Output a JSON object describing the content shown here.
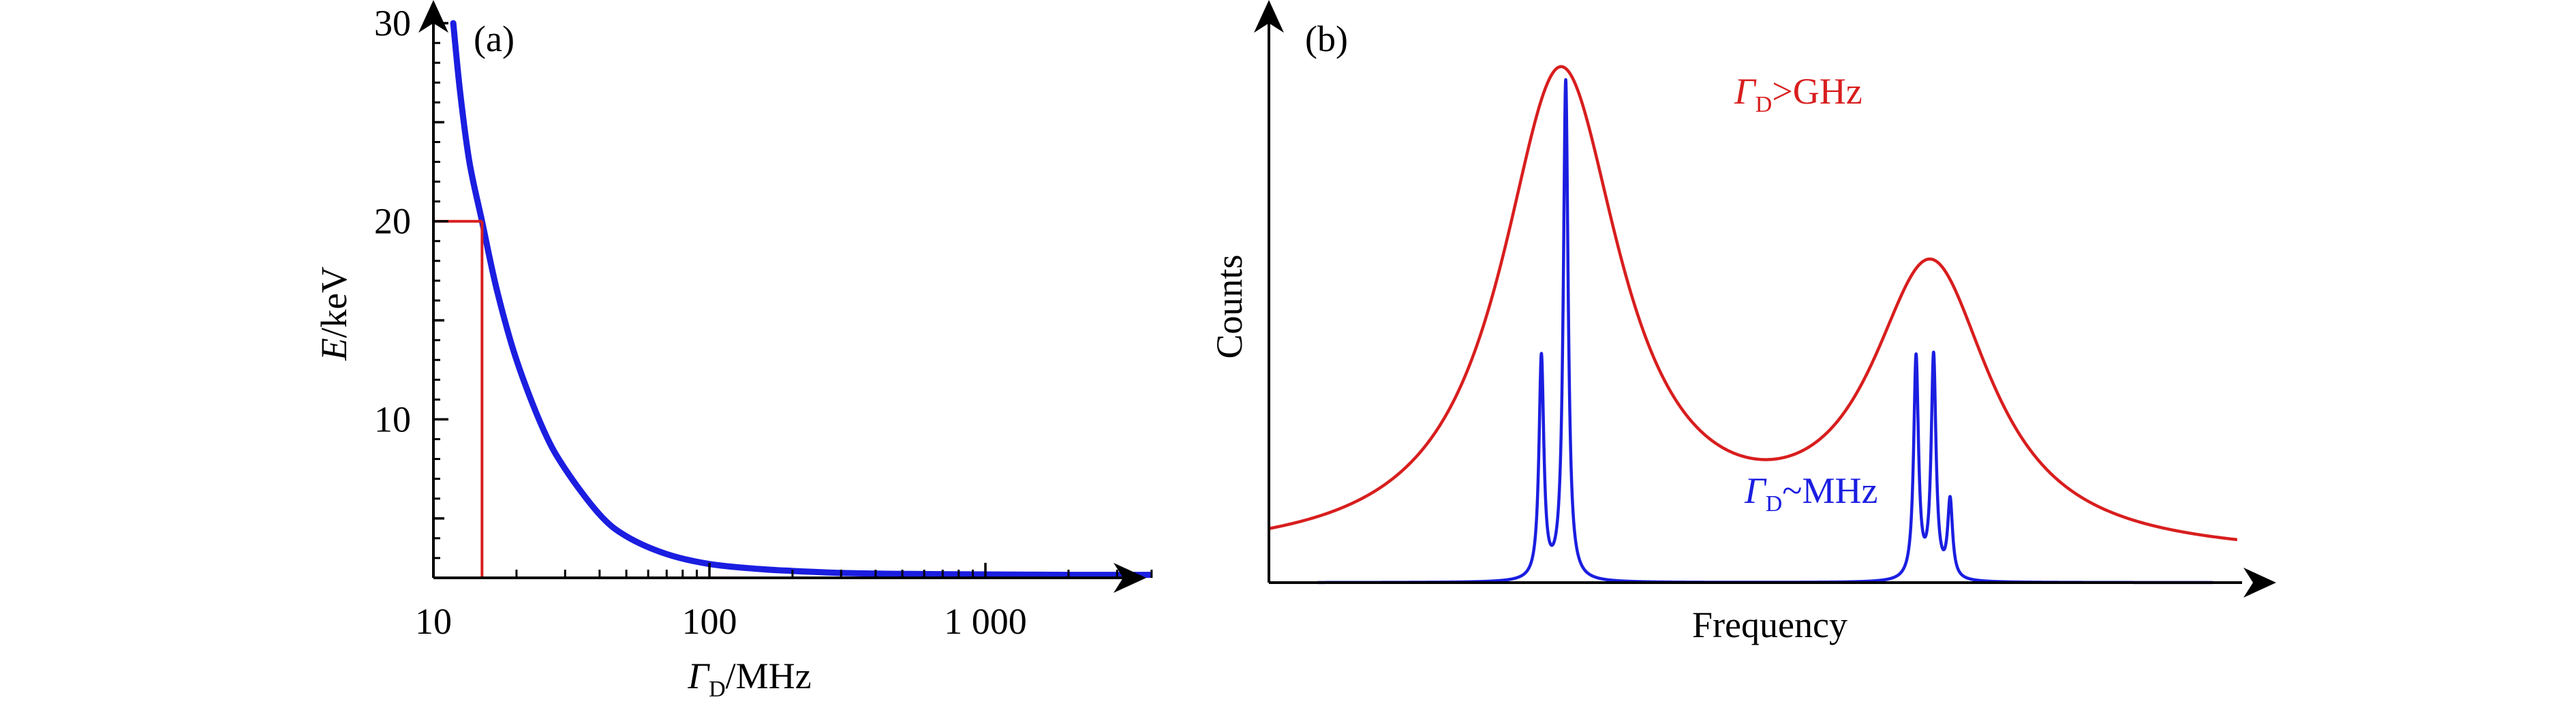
{
  "colors": {
    "axis": "#000000",
    "panel_a_curve": "#1b1ee0",
    "panel_a_marker": "#d81e1e",
    "panel_b_broad": "#d81e1e",
    "panel_b_narrow": "#1b1ee0"
  },
  "chart_data": [
    {
      "panel_label": "(a)",
      "type": "line",
      "xlabel": {
        "italic": "Γ",
        "sub": "D",
        "rest": "/MHz"
      },
      "ylabel": {
        "italic": "E",
        "rest": "/keV"
      },
      "x_scale": "log",
      "xlim": [
        10,
        4000
      ],
      "ylim": [
        2,
        30
      ],
      "x_ticks": [
        {
          "value": 10,
          "label": "10"
        },
        {
          "value": 100,
          "label": "100"
        },
        {
          "value": 1000,
          "label": "1 000"
        }
      ],
      "y_ticks": [
        {
          "value": 10,
          "label": "10"
        },
        {
          "value": 20,
          "label": "20"
        },
        {
          "value": 30,
          "label": "30"
        }
      ],
      "series": [
        {
          "x": [
            11.8,
            12.5,
            13.5,
            15,
            17,
            20,
            25,
            30,
            40,
            50,
            70,
            100,
            150,
            200,
            300,
            500,
            1000,
            2000,
            4000
          ],
          "y": [
            30,
            26.5,
            23,
            20,
            16.5,
            13,
            9.5,
            7.5,
            5.2,
            4.1,
            3.2,
            2.7,
            2.45,
            2.35,
            2.25,
            2.2,
            2.17,
            2.15,
            2.15
          ]
        }
      ],
      "marker": {
        "x": 15,
        "y": 20
      }
    },
    {
      "panel_label": "(b)",
      "type": "line",
      "xlabel": "Frequency",
      "ylabel": "Counts",
      "series": [
        {
          "label": {
            "italic": "Γ",
            "sub": "D",
            "rest": ">GHz"
          },
          "baseline": 0.04,
          "peaks": [
            {
              "center": 0.3,
              "height": 0.87,
              "width": 0.075
            },
            {
              "center": 0.68,
              "height": 0.51,
              "width": 0.075
            }
          ]
        },
        {
          "label": {
            "italic": "Γ",
            "sub": "D",
            "rest": "~MHz"
          },
          "baseline": 0.0,
          "peaks": [
            {
              "center": 0.28,
              "height": 0.4,
              "width": 0.003
            },
            {
              "center": 0.305,
              "height": 0.9,
              "width": 0.003
            },
            {
              "center": 0.665,
              "height": 0.4,
              "width": 0.003
            },
            {
              "center": 0.683,
              "height": 0.4,
              "width": 0.003
            },
            {
              "center": 0.7,
              "height": 0.14,
              "width": 0.003
            }
          ]
        }
      ]
    }
  ]
}
